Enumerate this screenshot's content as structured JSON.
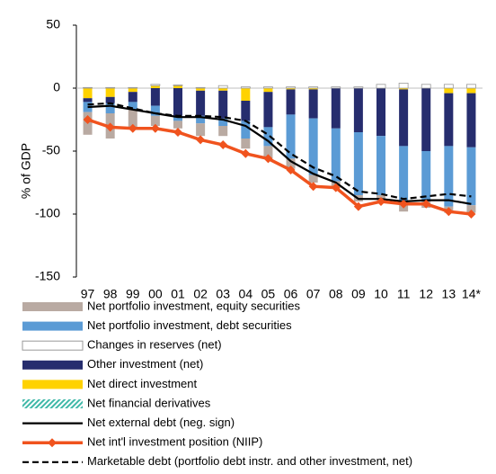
{
  "chart_data": {
    "type": "bar",
    "y_label": "% of GDP",
    "categories": [
      "97",
      "98",
      "99",
      "00",
      "01",
      "02",
      "03",
      "04",
      "05",
      "06",
      "07",
      "08",
      "09",
      "10",
      "11",
      "12",
      "13",
      "14*"
    ],
    "ylim": [
      -150,
      50
    ],
    "yticks": [
      50,
      0,
      -50,
      -100,
      -150
    ],
    "series": [
      {
        "name": "Net portfolio investment, equity securities",
        "type": "bar",
        "color": "#b9aaa2",
        "values": [
          -18,
          -20,
          -15,
          -8,
          -6,
          -10,
          -8,
          -8,
          -10,
          -8,
          -6,
          -4,
          -5,
          -4,
          -6,
          -5,
          -5,
          -6
        ]
      },
      {
        "name": "Net portfolio investment, debt securities",
        "type": "bar",
        "color": "#5b9bd5",
        "values": [
          -8,
          -8,
          -6,
          -8,
          -4,
          -6,
          -6,
          -14,
          -15,
          -35,
          -45,
          -42,
          -50,
          -47,
          -46,
          -40,
          -48,
          -46
        ]
      },
      {
        "name": "Changes in reserves (net)",
        "type": "bar",
        "color": "#ffffff",
        "values": [
          0.5,
          0.5,
          0.5,
          1,
          0.5,
          0.5,
          2,
          1,
          1,
          1,
          1,
          1,
          1,
          3,
          4,
          3,
          3,
          3
        ]
      },
      {
        "name": "Other investment (net)",
        "type": "bar",
        "color": "#262d6e",
        "values": [
          -3,
          -5,
          -8,
          -14,
          -22,
          -20,
          -22,
          -16,
          -28,
          -20,
          -23,
          -32,
          -35,
          -38,
          -45,
          -50,
          -42,
          -43
        ]
      },
      {
        "name": "Net direct investment",
        "type": "bar",
        "color": "#ffd200",
        "values": [
          -8,
          -7,
          -3,
          2,
          2,
          -2,
          -2,
          -10,
          -3,
          -1,
          -1,
          0,
          0,
          0,
          -1,
          0,
          -4,
          -4
        ]
      },
      {
        "name": "Net financial derivatives",
        "type": "bar",
        "color": "#3fb8a8",
        "pattern": true,
        "values": [
          0,
          0,
          0,
          0,
          0,
          0,
          0,
          0,
          0,
          0,
          0,
          0,
          0,
          0,
          0,
          0,
          0,
          0
        ]
      },
      {
        "name": "Net external debt (neg. sign)",
        "type": "line",
        "color": "#000000",
        "values": [
          -15,
          -14,
          -17,
          -20,
          -23,
          -23,
          -25,
          -30,
          -42,
          -58,
          -68,
          -75,
          -88,
          -88,
          -90,
          -89,
          -89,
          -92
        ]
      },
      {
        "name": "Net int'l investment position (NIIP)",
        "type": "line",
        "color": "#f0531e",
        "marker": "diamond",
        "values": [
          -25,
          -31,
          -32,
          -32,
          -35,
          -41,
          -45,
          -52,
          -56,
          -65,
          -78,
          -79,
          -94,
          -90,
          -92,
          -92,
          -98,
          -100
        ]
      },
      {
        "name": "Marketable debt (portfolio debt instr. and other investment, net)",
        "type": "line",
        "color": "#000000",
        "dash": true,
        "values": [
          -13,
          -12,
          -16,
          -20,
          -22,
          -22,
          -23,
          -26,
          -37,
          -52,
          -63,
          -70,
          -82,
          -84,
          -88,
          -86,
          -84,
          -86
        ]
      }
    ]
  }
}
